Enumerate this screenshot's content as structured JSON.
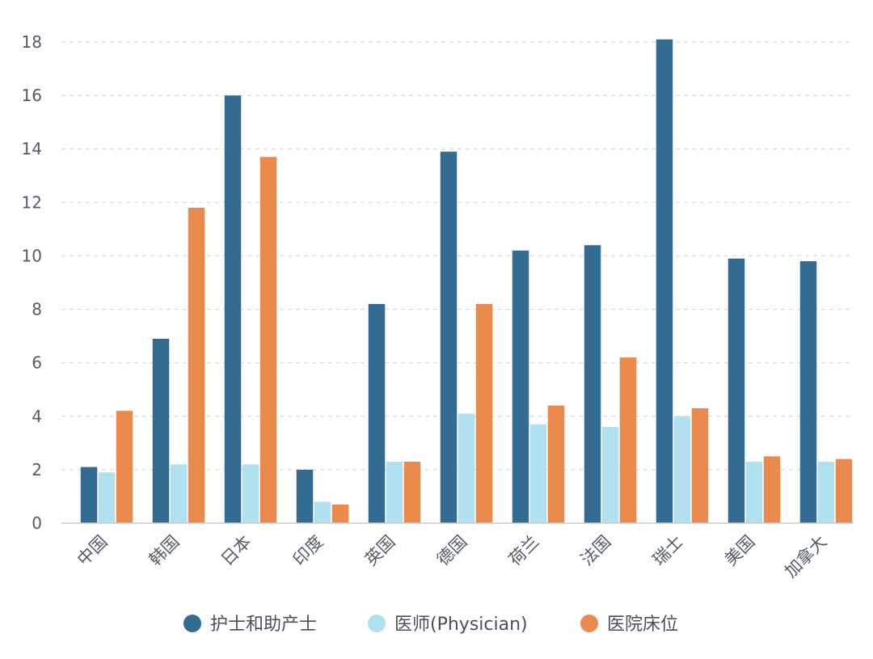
{
  "chart_data": {
    "type": "bar",
    "categories": [
      "中国",
      "韩国",
      "日本",
      "印度",
      "英国",
      "德国",
      "荷兰",
      "法国",
      "瑞士",
      "美国",
      "加拿大"
    ],
    "series": [
      {
        "name": "护士和助产士",
        "color": "#346b90",
        "values": [
          2.1,
          6.9,
          16.0,
          2.0,
          8.2,
          13.9,
          10.2,
          10.4,
          18.1,
          9.9,
          9.8
        ]
      },
      {
        "name": "医师(Physician)",
        "color": "#b1e0ee",
        "values": [
          1.9,
          2.2,
          2.2,
          0.8,
          2.3,
          4.1,
          3.7,
          3.6,
          4.0,
          2.3,
          2.3
        ]
      },
      {
        "name": "医院床位",
        "color": "#ea8a4c",
        "values": [
          4.2,
          11.8,
          13.7,
          0.7,
          2.3,
          8.2,
          4.4,
          6.2,
          4.3,
          2.5,
          2.4
        ]
      }
    ],
    "yticks": [
      "0",
      "2",
      "4",
      "6",
      "8",
      "10",
      "12",
      "14",
      "16",
      "18"
    ],
    "ylim": [
      0,
      18
    ],
    "grid": true,
    "legend_position": "bottom"
  }
}
